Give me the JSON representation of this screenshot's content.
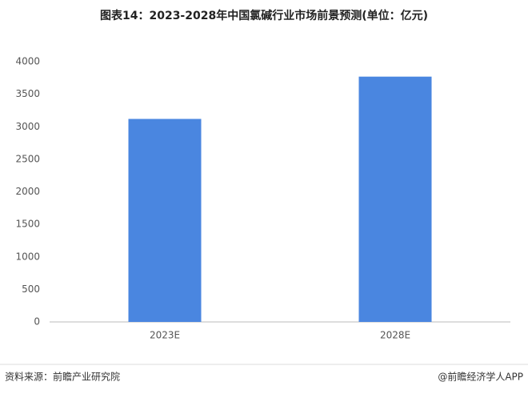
{
  "chart_data": {
    "type": "bar",
    "title": "图表14：2023-2028年中国氯碱行业市场前景预测(单位：亿元)",
    "categories": [
      "2023E",
      "2028E"
    ],
    "values": [
      3120,
      3770
    ],
    "color": "#4a86e0",
    "ylim": [
      0,
      4000
    ],
    "yticks": [
      0,
      500,
      1000,
      1500,
      2000,
      2500,
      3000,
      3500,
      4000
    ],
    "grid": false,
    "source": "资料来源：前瞻产业研究院",
    "credit": "@前瞻经济学人APP"
  }
}
